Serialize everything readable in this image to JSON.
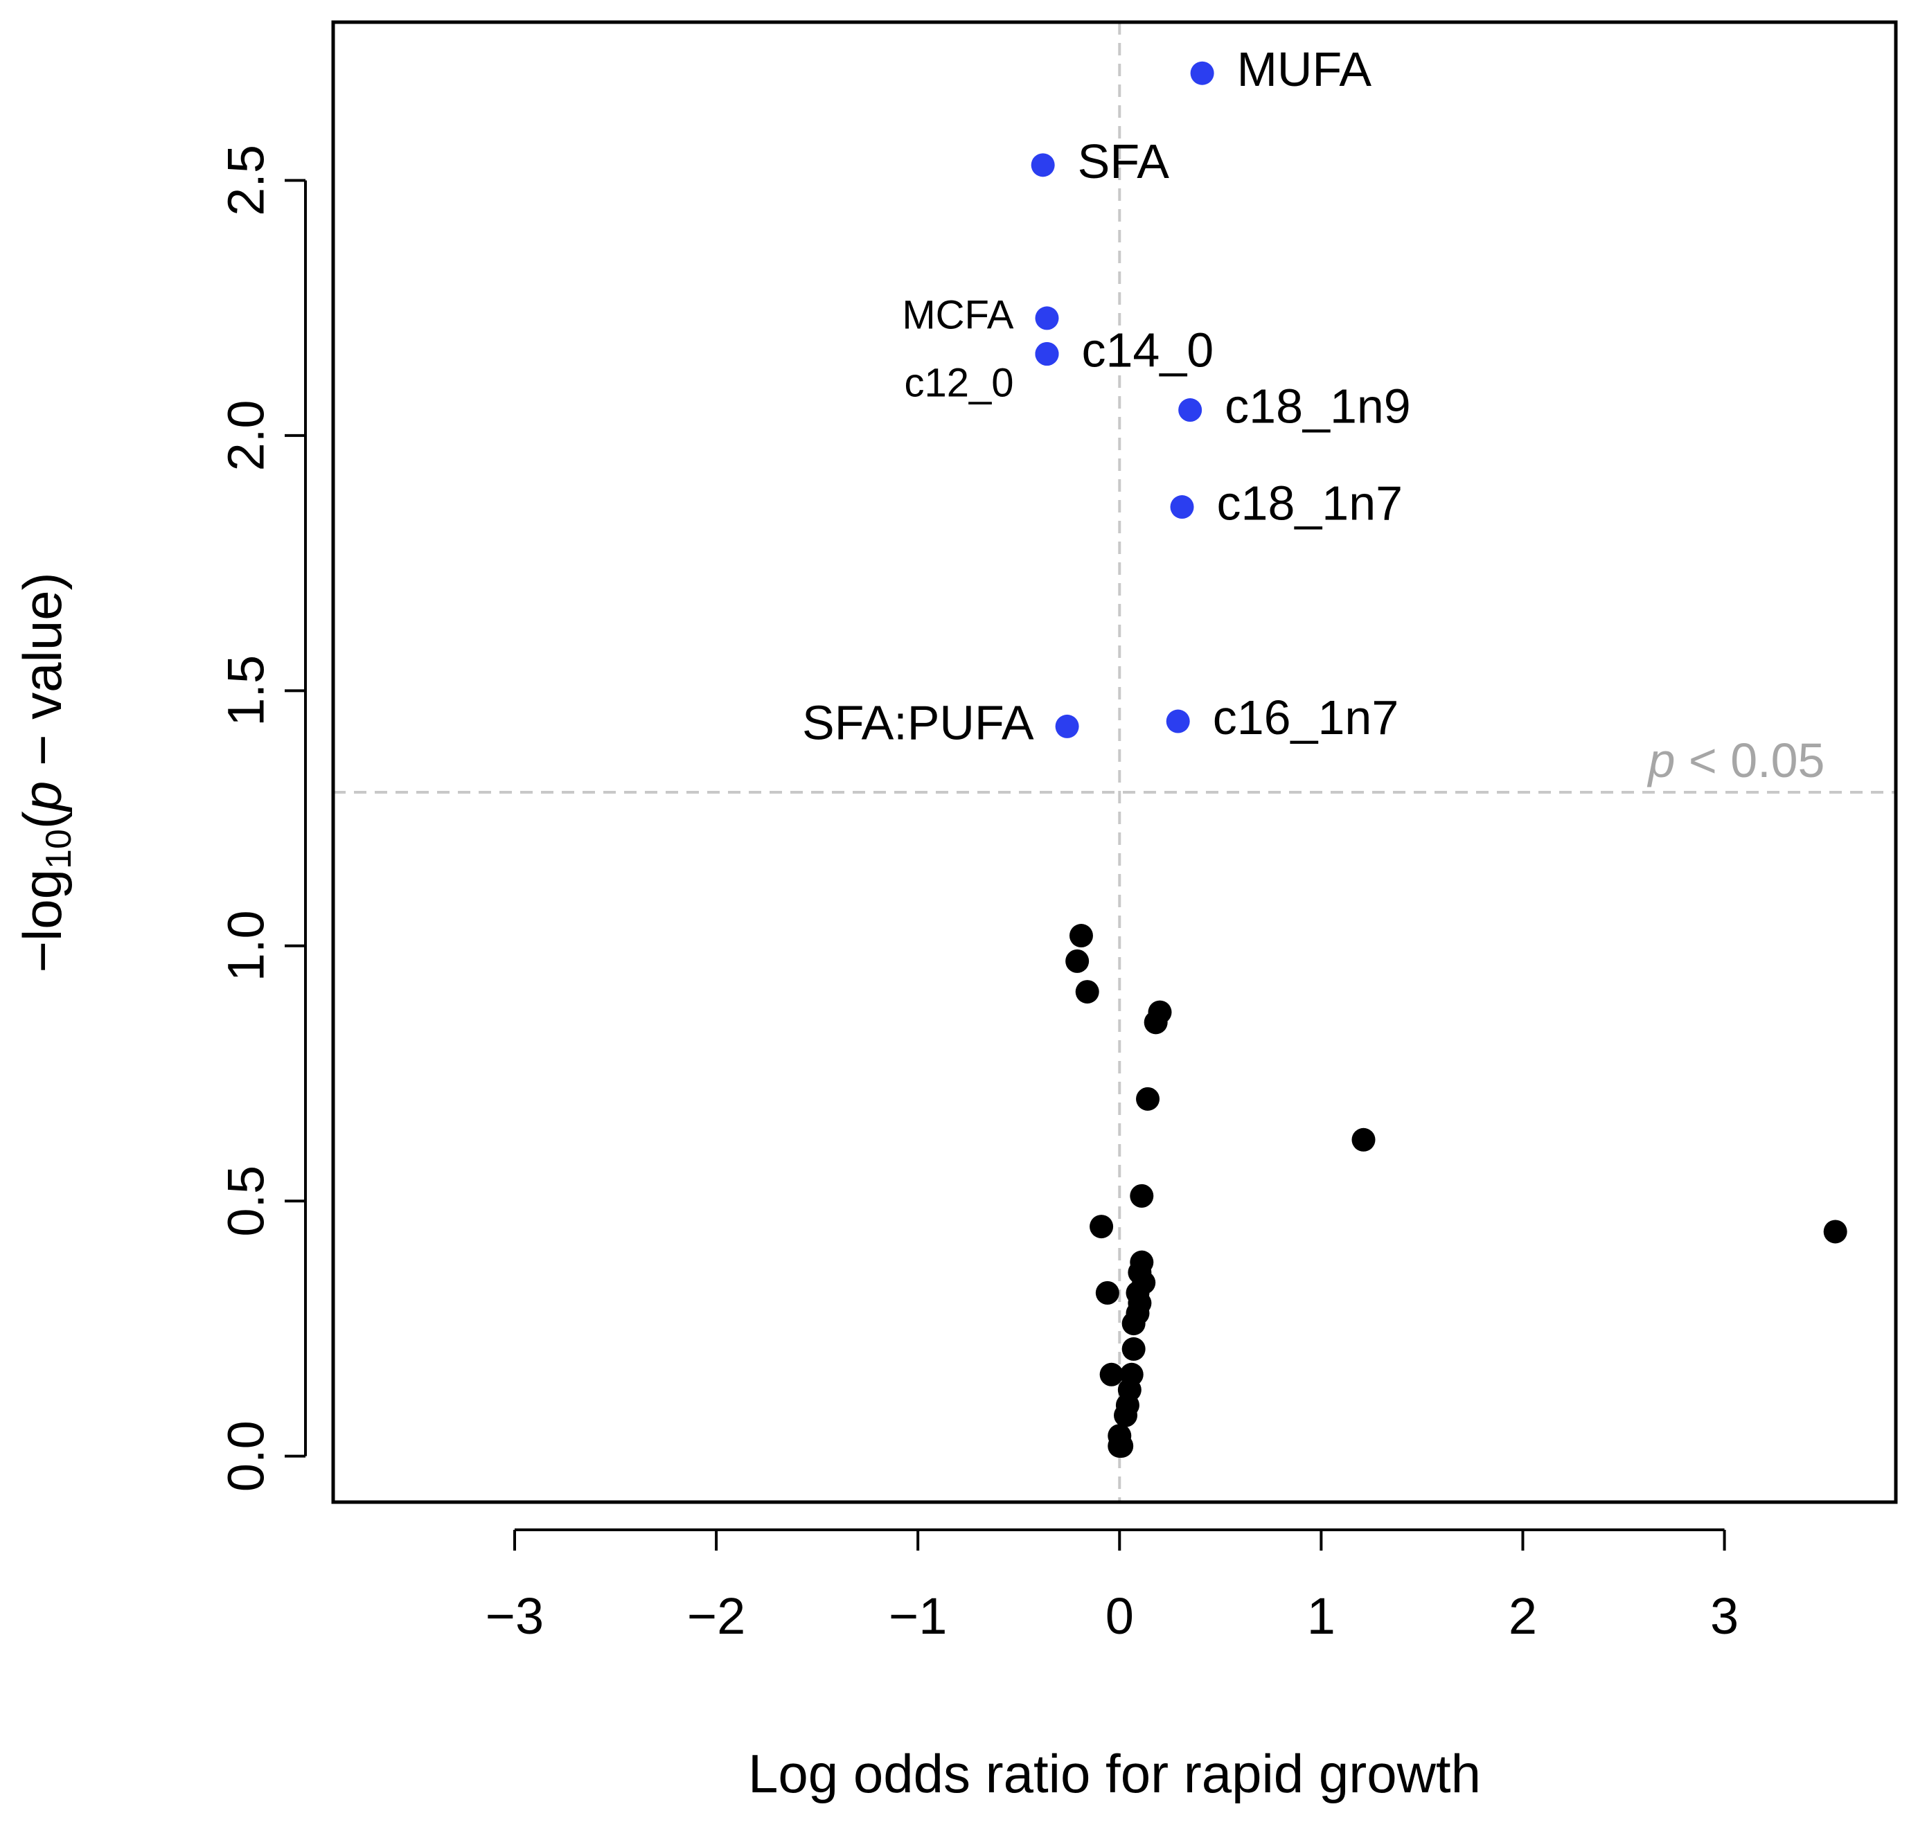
{
  "chart_data": {
    "type": "scatter",
    "title": "",
    "xlabel": "Log odds ratio for rapid growth",
    "ylabel": {
      "prefix": "−log",
      "subscript": "10",
      "open": "(",
      "italic": "p",
      "suffix": " − value)"
    },
    "xlim": [
      -3.9,
      3.85
    ],
    "ylim": [
      -0.09,
      2.81
    ],
    "xticks": [
      -3,
      -2,
      -1,
      0,
      1,
      2,
      3
    ],
    "xtick_labels": [
      "−3",
      "−2",
      "−1",
      "0",
      "1",
      "2",
      "3"
    ],
    "yticks": [
      0.0,
      0.5,
      1.0,
      1.5,
      2.0,
      2.5
    ],
    "ytick_labels": [
      "0.0",
      "0.5",
      "1.0",
      "1.5",
      "2.0",
      "2.5"
    ],
    "grid": false,
    "reference_lines": {
      "vertical_x": 0,
      "horizontal_y": 1.301,
      "threshold_label": {
        "italic": "p",
        "text": " < 0.05"
      }
    },
    "colors": {
      "significant": "#2b3ef0",
      "nonsignificant": "#000000",
      "reference_line": "#c8c8c8",
      "threshold_text": "#a6a6a6"
    },
    "significant_points": [
      {
        "name": "MUFA",
        "x": 0.41,
        "y": 2.71,
        "label_side": "right",
        "size": "normal"
      },
      {
        "name": "SFA",
        "x": -0.38,
        "y": 2.53,
        "label_side": "right",
        "size": "normal"
      },
      {
        "name": "MCFA",
        "x": -0.36,
        "y": 2.23,
        "label_side": "left",
        "size": "small"
      },
      {
        "name": "c12_0",
        "x": -0.36,
        "y": 2.16,
        "label_side": "left",
        "size": "small"
      },
      {
        "name": "c14_0",
        "x": -0.36,
        "y": 2.16,
        "label_side": "right",
        "size": "normal"
      },
      {
        "name": "c18_1n9",
        "x": 0.35,
        "y": 2.05,
        "label_side": "right",
        "size": "normal"
      },
      {
        "name": "c18_1n7",
        "x": 0.31,
        "y": 1.86,
        "label_side": "right",
        "size": "normal"
      },
      {
        "name": "SFA:PUFA",
        "x": -0.26,
        "y": 1.43,
        "label_side": "left",
        "size": "normal"
      },
      {
        "name": "c16_1n7",
        "x": 0.29,
        "y": 1.44,
        "label_side": "right",
        "size": "normal"
      }
    ],
    "other_points": {
      "x": [
        -0.19,
        -0.21,
        -0.16,
        0.2,
        0.18,
        0.14,
        1.21,
        0.11,
        -0.09,
        0.11,
        0.1,
        0.12,
        0.09,
        0.1,
        -0.06,
        0.09,
        0.07,
        0.07,
        0.06,
        -0.04,
        0.05,
        0.04,
        0.03,
        0.0,
        0.0,
        0.01,
        3.55
      ],
      "y": [
        1.02,
        0.97,
        0.91,
        0.87,
        0.85,
        0.7,
        0.62,
        0.51,
        0.45,
        0.38,
        0.36,
        0.34,
        0.32,
        0.3,
        0.32,
        0.28,
        0.26,
        0.21,
        0.16,
        0.16,
        0.13,
        0.1,
        0.08,
        0.04,
        0.02,
        0.02,
        0.44
      ]
    }
  }
}
